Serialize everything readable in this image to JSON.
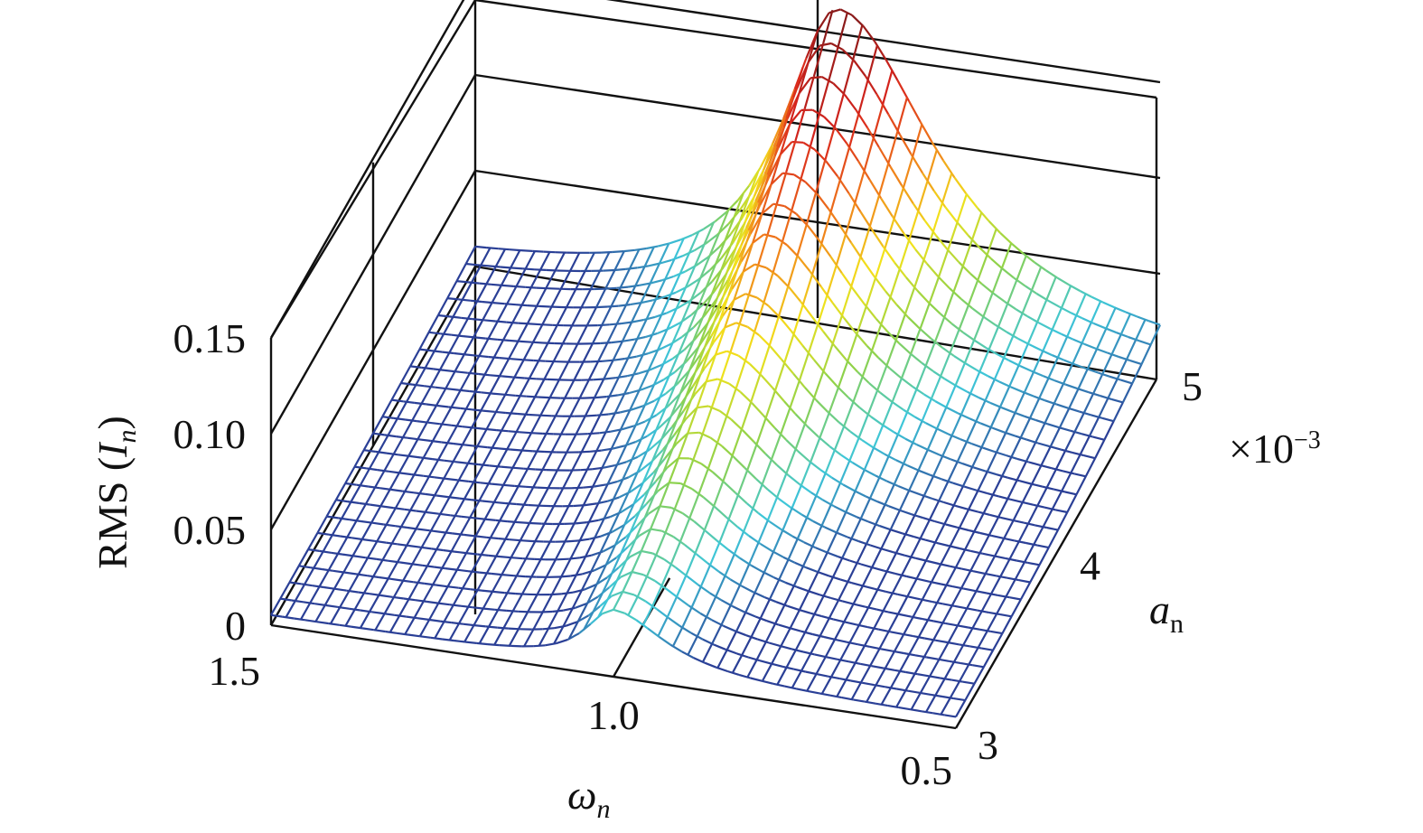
{
  "chart_data": {
    "type": "surface-3d",
    "title": "",
    "z_axis": {
      "label_main": "RMS (",
      "label_var": "I",
      "label_sub": "n",
      "label_end": ")",
      "range": [
        0,
        0.15
      ],
      "ticks": [
        {
          "v": 0,
          "t": "0"
        },
        {
          "v": 0.05,
          "t": "0.05"
        },
        {
          "v": 0.1,
          "t": "0.10"
        },
        {
          "v": 0.15,
          "t": "0.15"
        }
      ]
    },
    "x_axis": {
      "label_var": "ω",
      "label_sub": "n",
      "range": [
        1.5,
        0.5
      ],
      "ticks": [
        {
          "v": 1.5,
          "t": "1.5"
        },
        {
          "v": 1.0,
          "t": "1.0"
        },
        {
          "v": 0.5,
          "t": "0.5"
        }
      ]
    },
    "y_axis": {
      "label_var": "a",
      "label_sub": "n",
      "range": [
        3,
        5
      ],
      "multiplier_base": "×10",
      "multiplier_exp": "−3",
      "ticks": [
        {
          "v": 3,
          "t": "3"
        },
        {
          "v": 4,
          "t": "4"
        },
        {
          "v": 5,
          "t": "5"
        }
      ]
    },
    "surface": {
      "description_free": false,
      "omega_grid": [
        1.5,
        0.5
      ],
      "a_grid": [
        3,
        5
      ],
      "peak_omega_near": 1.0,
      "peak_rms_max": 0.158,
      "peak_rms_min": 0.03,
      "baseline_rms": 0.005,
      "colormap": [
        "#2a3f96",
        "#3ec6d8",
        "#8fd24a",
        "#f2e21b",
        "#f07a1a",
        "#d8241c",
        "#8a1a1a"
      ]
    },
    "grid": true
  }
}
